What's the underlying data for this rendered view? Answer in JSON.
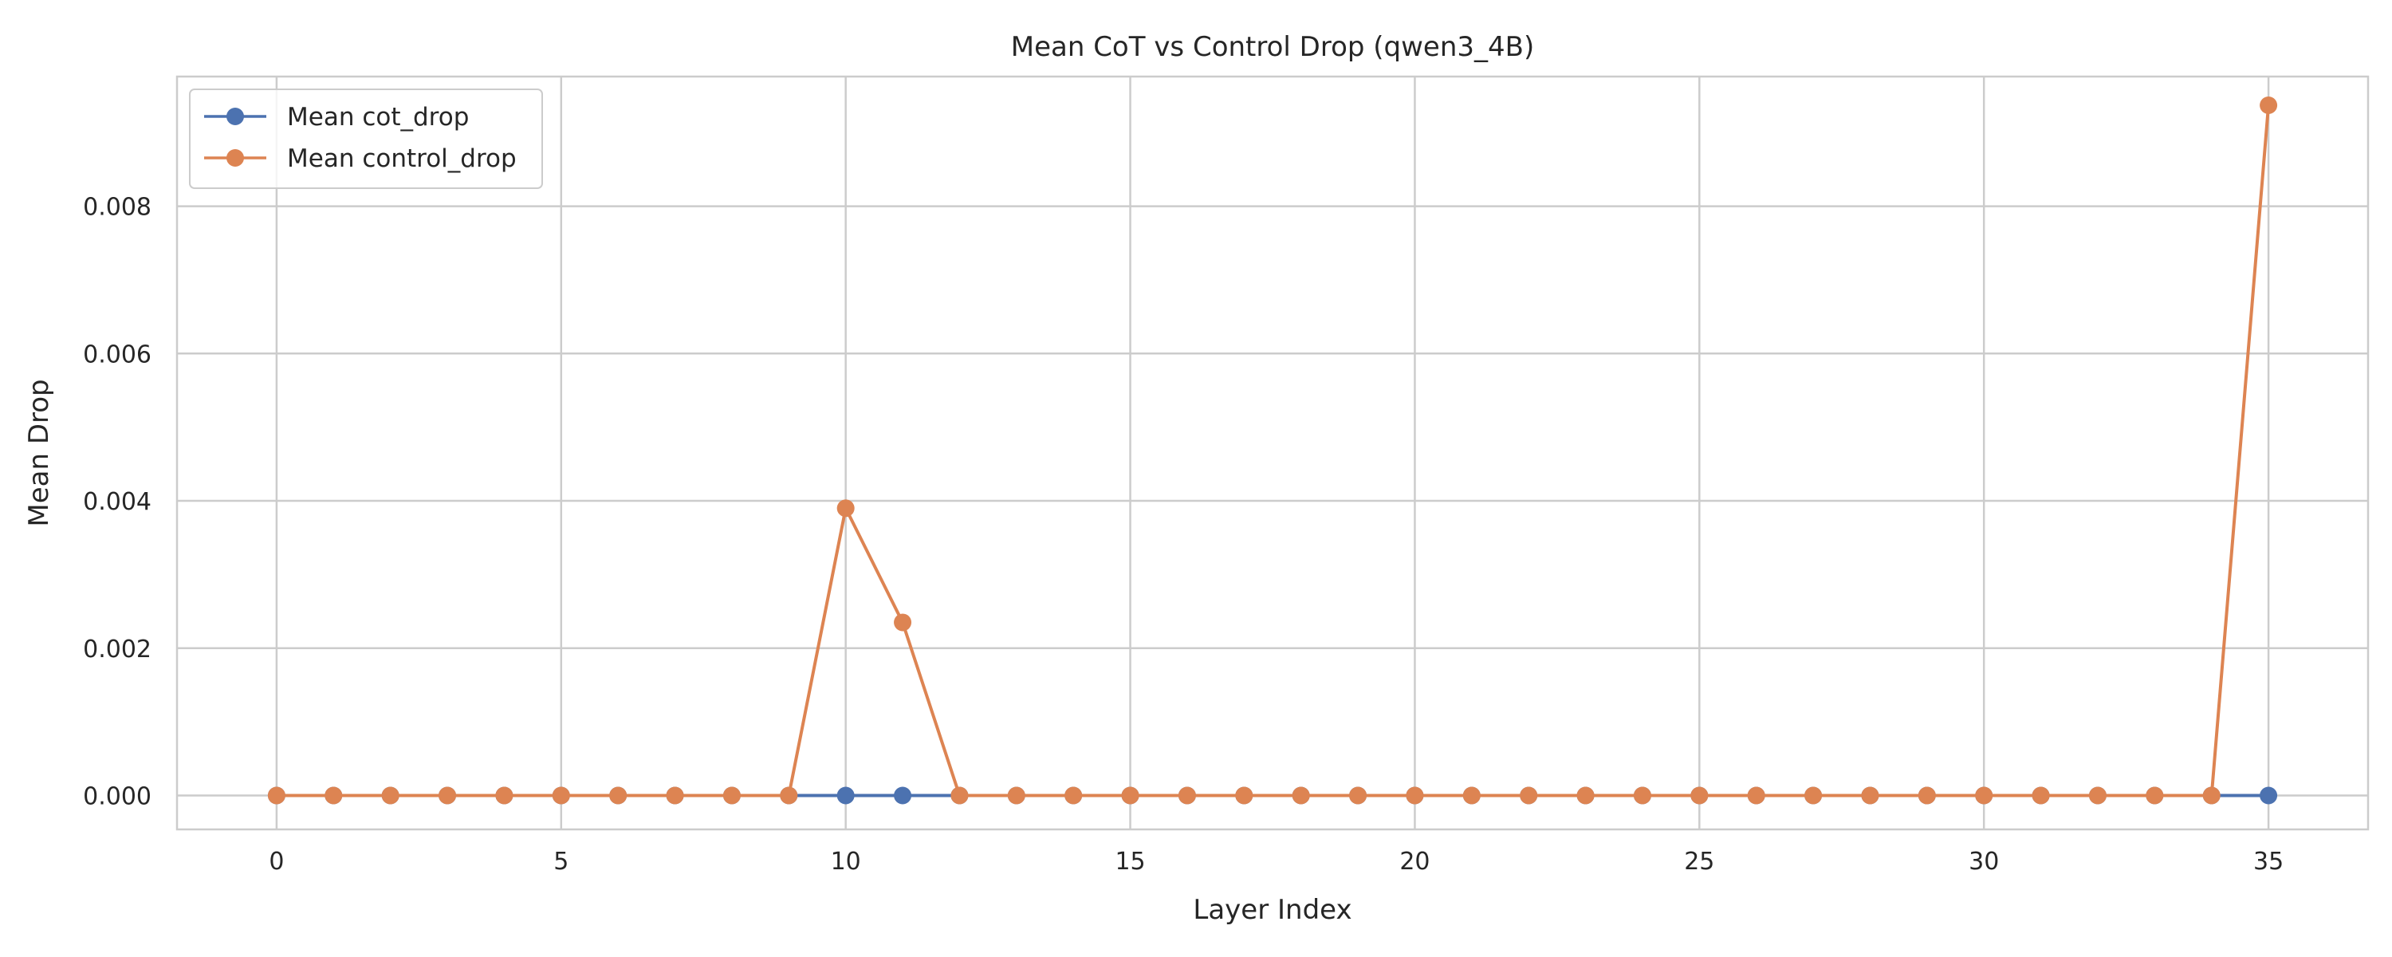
{
  "chart_data": {
    "type": "line",
    "title": "Mean CoT vs Control Drop (qwen3_4B)",
    "xlabel": "Layer Index",
    "ylabel": "Mean Drop",
    "x": [
      0,
      1,
      2,
      3,
      4,
      5,
      6,
      7,
      8,
      9,
      10,
      11,
      12,
      13,
      14,
      15,
      16,
      17,
      18,
      19,
      20,
      21,
      22,
      23,
      24,
      25,
      26,
      27,
      28,
      29,
      30,
      31,
      32,
      33,
      34,
      35
    ],
    "xlim": [
      -1.75,
      36.75
    ],
    "ylim": [
      -0.00046,
      0.00976
    ],
    "xticks": [
      0,
      5,
      10,
      15,
      20,
      25,
      30,
      35
    ],
    "xtick_labels": [
      "0",
      "5",
      "10",
      "15",
      "20",
      "25",
      "30",
      "35"
    ],
    "yticks": [
      0.0,
      0.002,
      0.004,
      0.006,
      0.008
    ],
    "ytick_labels": [
      "0.000",
      "0.002",
      "0.004",
      "0.006",
      "0.008"
    ],
    "grid": true,
    "legend_position": "top-left",
    "series": [
      {
        "name": "Mean cot_drop",
        "color": "#4c72b0",
        "marker": "circle",
        "values": [
          0,
          0,
          0,
          0,
          0,
          0,
          0,
          0,
          0,
          0,
          0,
          0,
          0,
          0,
          0,
          0,
          0,
          0,
          0,
          0,
          0,
          0,
          0,
          0,
          0,
          0,
          0,
          0,
          0,
          0,
          0,
          0,
          0,
          0,
          0,
          0
        ]
      },
      {
        "name": "Mean control_drop",
        "color": "#dd8452",
        "marker": "circle",
        "values": [
          0,
          0,
          0,
          0,
          0,
          0,
          0,
          0,
          0,
          0,
          0.0039,
          0.00235,
          0,
          0,
          0,
          0,
          0,
          0,
          0,
          0,
          0,
          0,
          0,
          0,
          0,
          0,
          0,
          0,
          0,
          0,
          0,
          0,
          0,
          0,
          0,
          0.00937
        ]
      }
    ]
  }
}
